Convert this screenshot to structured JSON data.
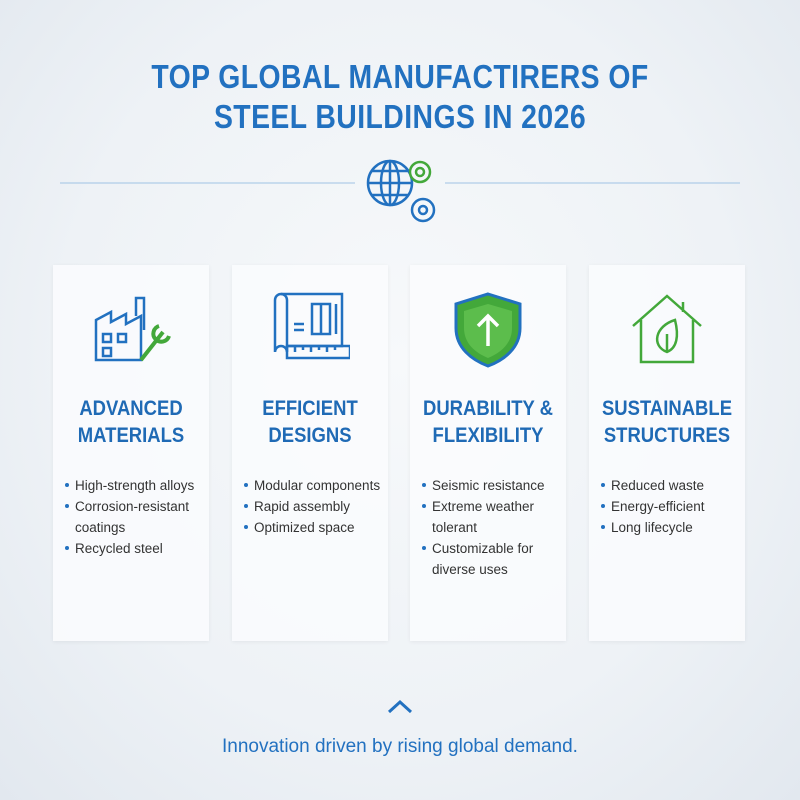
{
  "header": {
    "title": [
      "TOP GLOBAL MANUFACTIRERS OF",
      "STEEL BUILDINGS IN 2026"
    ]
  },
  "cards": [
    {
      "heading": [
        "ADVANCED",
        "MATERIALS"
      ],
      "items": [
        "High-strength alloys",
        "Corrosion-resistant coatings",
        "Recycled steel"
      ]
    },
    {
      "heading": [
        "EFFICIENT",
        "DESIGNS"
      ],
      "items": [
        "Modular components",
        "Rapid assembly",
        "Optimized space"
      ]
    },
    {
      "heading": [
        "DURABILITY &",
        "FLEXIBILITY"
      ],
      "items": [
        "Seismic resistance",
        "Extreme weather tolerant",
        "Customizable for diverse uses"
      ]
    },
    {
      "heading": [
        "SUSTAINABLE",
        "STRUCTURES"
      ],
      "items": [
        "Reduced waste",
        "Energy-efficient",
        "Long lifecycle"
      ]
    }
  ],
  "footer": {
    "text": "Innovation driven by rising global demand."
  }
}
